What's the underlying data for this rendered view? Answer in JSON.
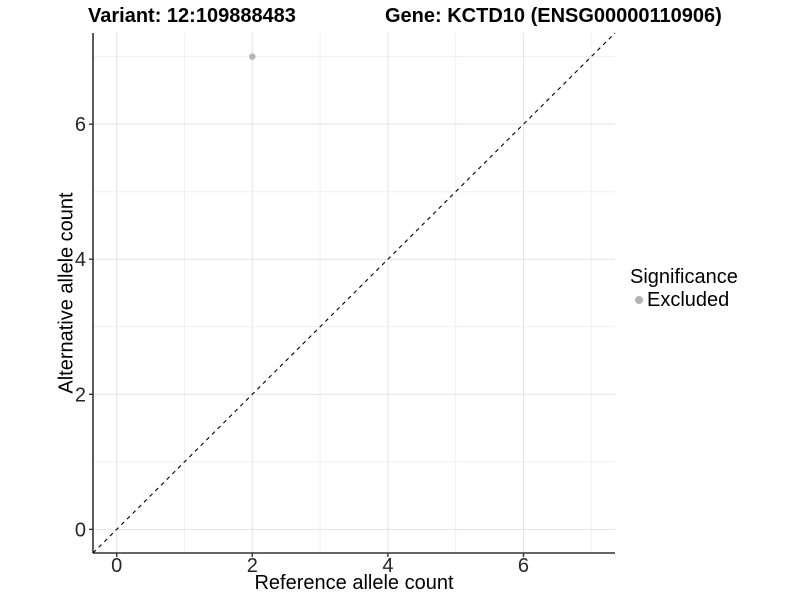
{
  "chart_data": {
    "type": "scatter",
    "titles": {
      "left": "Variant: 12:109888483",
      "right": "Gene: KCTD10 (ENSG00000110906)"
    },
    "xlabel": "Reference allele count",
    "ylabel": "Alternative allele count",
    "xlim": [
      -0.35,
      7.35
    ],
    "ylim": [
      -0.35,
      7.35
    ],
    "x_major_ticks": [
      0,
      2,
      4,
      6
    ],
    "y_major_ticks": [
      0,
      2,
      4,
      6
    ],
    "x_minor_gridlines": [
      1,
      3,
      5,
      7
    ],
    "y_minor_gridlines": [
      1,
      3,
      5,
      7
    ],
    "grid": true,
    "points": [
      {
        "x": 2,
        "y": 7,
        "series": "Excluded"
      }
    ],
    "identity_line": {
      "type": "y=x",
      "style": "dashed",
      "color": "#000000"
    },
    "legend": {
      "title": "Significance",
      "position": "right",
      "entries": [
        {
          "label": "Excluded",
          "marker": "circle",
          "color": "#b4b4b4"
        }
      ]
    },
    "colors": {
      "point": "#b4b4b4",
      "axis_line": "#333333",
      "tick_mark": "#333333",
      "tick_label": "#262626",
      "grid_major": "#e3e3e3",
      "grid_minor": "#f0f0f0",
      "background": "#ffffff"
    }
  }
}
